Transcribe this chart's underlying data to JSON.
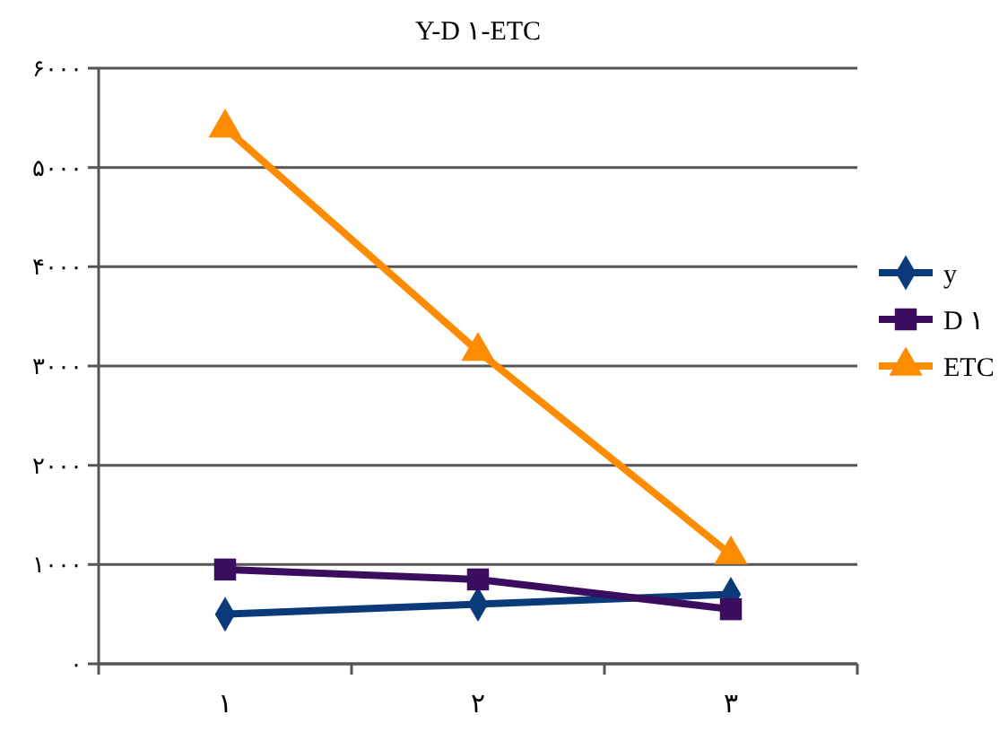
{
  "chart_data": {
    "type": "line",
    "title": "Y-D ۱-ETC",
    "categories": [
      "۱",
      "۲",
      "۳"
    ],
    "series": [
      {
        "name": "y",
        "color": "#0a3a7a",
        "marker": "diamond",
        "values": [
          500,
          600,
          700
        ]
      },
      {
        "name": "D ۱",
        "color": "#3a0d5e",
        "marker": "square",
        "values": [
          950,
          850,
          550
        ]
      },
      {
        "name": "ETC",
        "color": "#ff8c00",
        "marker": "triangle",
        "values": [
          5400,
          3150,
          1100
        ]
      }
    ],
    "ylim": [
      0,
      6000
    ],
    "yticks": [
      {
        "value": 0,
        "label": "۰"
      },
      {
        "value": 1000,
        "label": "۱۰۰۰"
      },
      {
        "value": 2000,
        "label": "۲۰۰۰"
      },
      {
        "value": 3000,
        "label": "۳۰۰۰"
      },
      {
        "value": 4000,
        "label": "۴۰۰۰"
      },
      {
        "value": 5000,
        "label": "۵۰۰۰"
      },
      {
        "value": 6000,
        "label": "۶۰۰۰"
      }
    ],
    "grid": "y",
    "legend": "right",
    "line_style": "solid"
  }
}
